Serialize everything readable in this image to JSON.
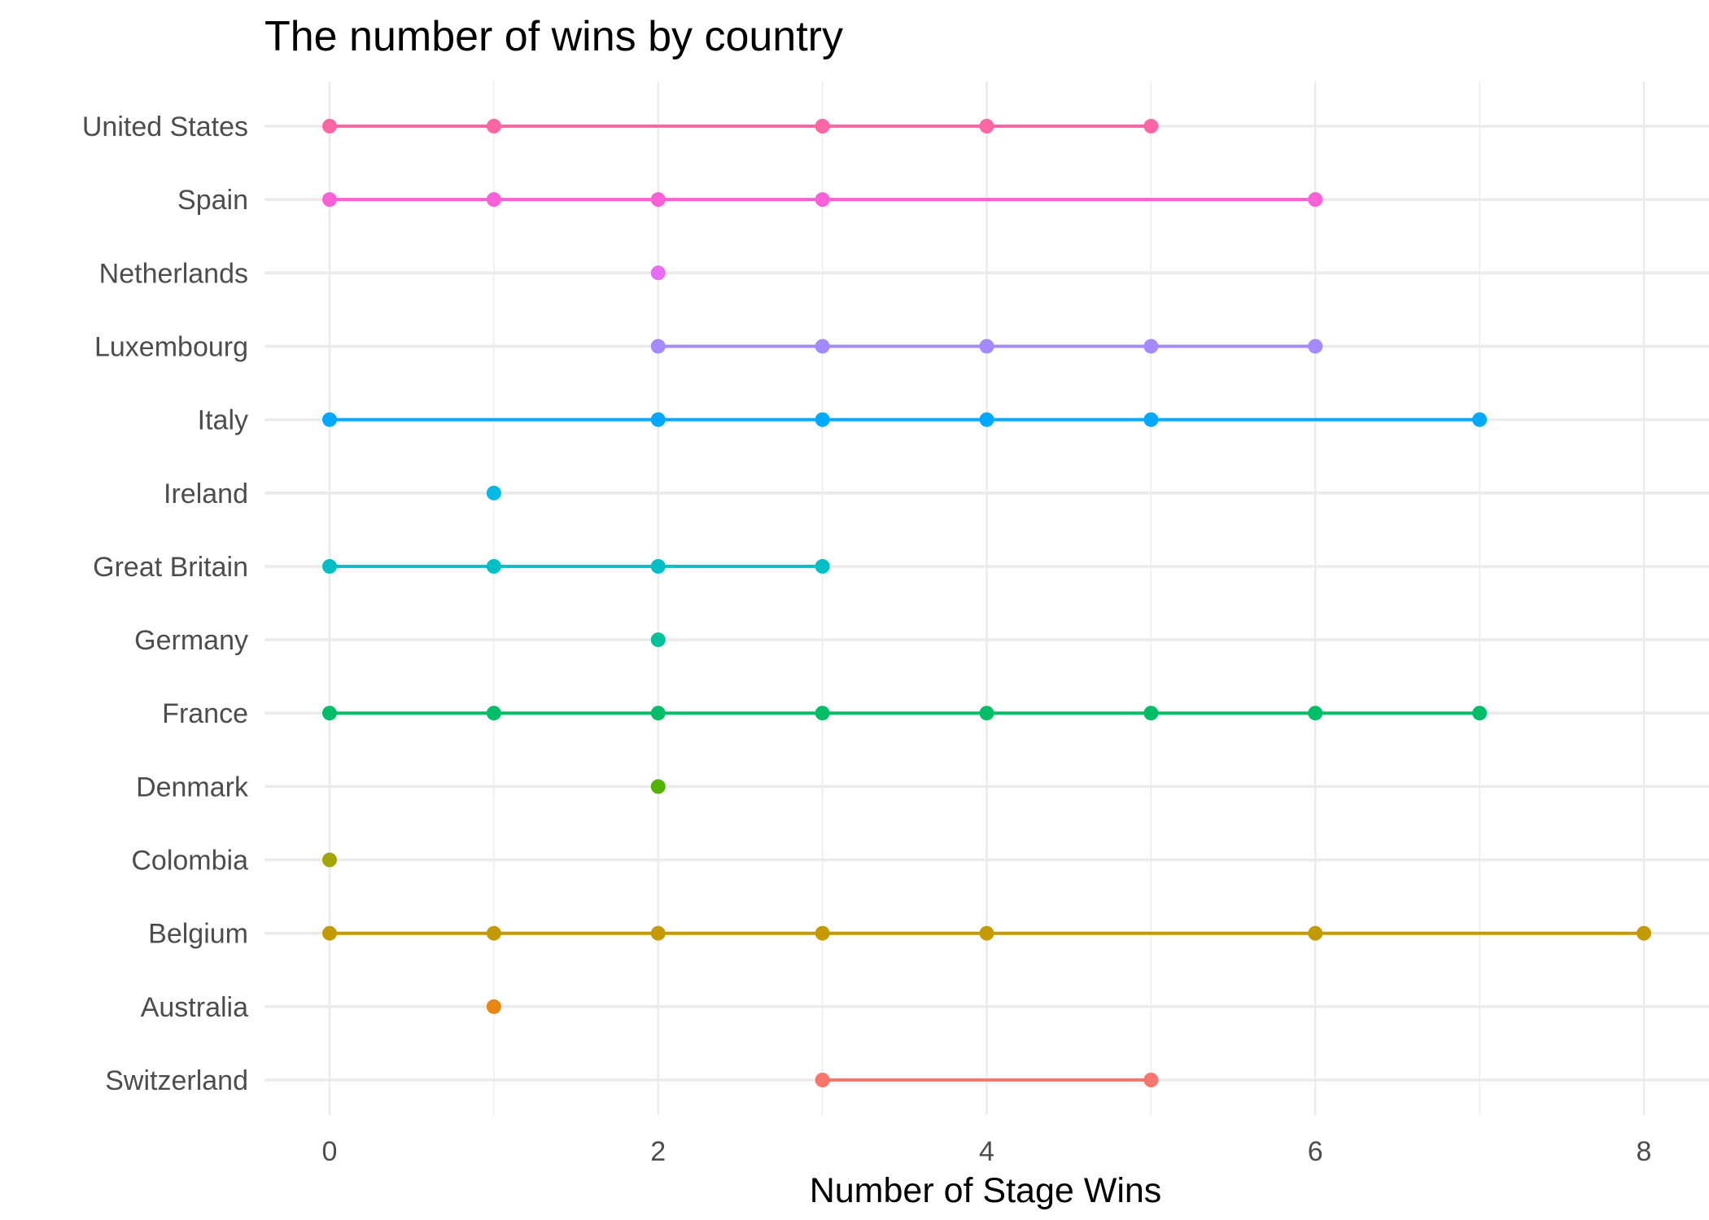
{
  "chart_data": {
    "type": "line",
    "title": "The number of wins by country",
    "xlabel": "Number of Stage Wins",
    "ylabel": "",
    "xlim": [
      -0.4,
      8.4
    ],
    "xticks": [
      "0",
      "2",
      "4",
      "6",
      "8"
    ],
    "x_gridlines": [
      0,
      1,
      2,
      3,
      4,
      5,
      6,
      7,
      8
    ],
    "grid": true,
    "legend": "none",
    "categories": [
      "United States",
      "Spain",
      "Netherlands",
      "Luxembourg",
      "Italy",
      "Ireland",
      "Great Britain",
      "Germany",
      "France",
      "Denmark",
      "Colombia",
      "Belgium",
      "Australia",
      "Switzerland"
    ],
    "series": [
      {
        "category": "United States",
        "color": "#FF67A4",
        "x": [
          0,
          1,
          3,
          4,
          5
        ]
      },
      {
        "category": "Spain",
        "color": "#FB61D7",
        "x": [
          0,
          1,
          2,
          3,
          6
        ]
      },
      {
        "category": "Netherlands",
        "color": "#E76BF3",
        "x": [
          2
        ]
      },
      {
        "category": "Luxembourg",
        "color": "#A58AFF",
        "x": [
          2,
          3,
          4,
          5,
          6
        ]
      },
      {
        "category": "Italy",
        "color": "#00A9FF",
        "x": [
          0,
          2,
          3,
          4,
          5,
          7
        ]
      },
      {
        "category": "Ireland",
        "color": "#00B8E7",
        "x": [
          1
        ]
      },
      {
        "category": "Great Britain",
        "color": "#00BFC4",
        "x": [
          0,
          1,
          2,
          3
        ]
      },
      {
        "category": "Germany",
        "color": "#00C19A",
        "x": [
          2
        ]
      },
      {
        "category": "France",
        "color": "#00BE67",
        "x": [
          0,
          1,
          2,
          3,
          4,
          5,
          6,
          7
        ]
      },
      {
        "category": "Denmark",
        "color": "#53B400",
        "x": [
          2
        ]
      },
      {
        "category": "Colombia",
        "color": "#A3A500",
        "x": [
          0
        ]
      },
      {
        "category": "Belgium",
        "color": "#C49A00",
        "x": [
          0,
          1,
          2,
          3,
          4,
          6,
          8
        ]
      },
      {
        "category": "Australia",
        "color": "#E68613",
        "x": [
          1
        ]
      },
      {
        "category": "Switzerland",
        "color": "#F8766D",
        "x": [
          3,
          5
        ]
      }
    ]
  }
}
